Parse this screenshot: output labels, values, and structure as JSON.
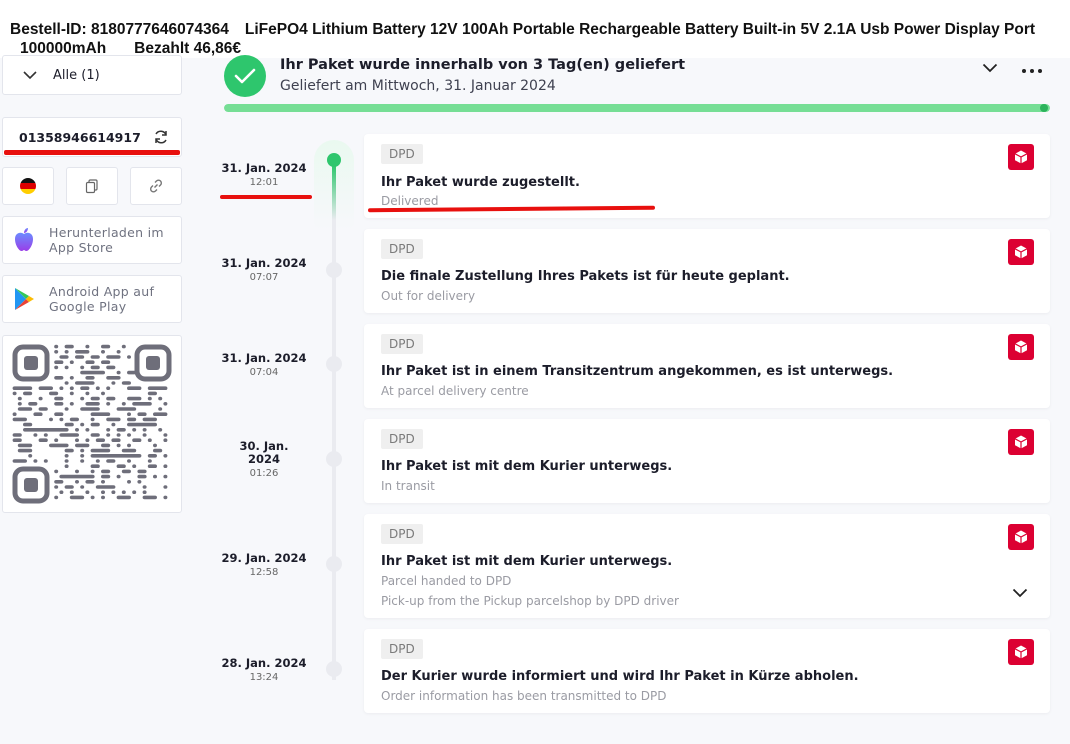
{
  "order": {
    "id_text": "Bestell-ID: 8180777646074364",
    "product_line1": "LiFePO4 Lithium Battery 12V 100Ah Portable Rechargeable Battery Built-in 5V 2.1A Usb Power Display Port",
    "product_line2": "100000mAh",
    "paid": "Bezahlt 46,86€"
  },
  "sidebar": {
    "filter_label": "Alle (1)",
    "tracking_number": "01358946614917",
    "icons": [
      "flag-de-icon",
      "copy-icon",
      "link-icon"
    ],
    "app_store": {
      "line1": "Herunterladen im",
      "line2": "App Store"
    },
    "google_play": {
      "line1": "Android App auf",
      "line2": "Google Play"
    }
  },
  "summary": {
    "title": "Ihr Paket wurde innerhalb von 3 Tag(en) geliefert",
    "subtitle": "Geliefert am Mittwoch, 31. Januar 2024",
    "progress": 1.0
  },
  "colors": {
    "accent_green": "#2ec66d",
    "dpd_red": "#dc0032",
    "annotation_red": "#e8100e"
  },
  "events": [
    {
      "date": "31. Jan. 2024",
      "time": "12:01",
      "carrier": "DPD",
      "title": "Ihr Paket wurde zugestellt.",
      "subs": [
        "Delivered"
      ]
    },
    {
      "date": "31. Jan. 2024",
      "time": "07:07",
      "carrier": "DPD",
      "title": "Die finale Zustellung Ihres Pakets ist für heute geplant.",
      "subs": [
        "Out for delivery"
      ]
    },
    {
      "date": "31. Jan. 2024",
      "time": "07:04",
      "carrier": "DPD",
      "title": "Ihr Paket ist in einem Transitzentrum angekommen, es ist unterwegs.",
      "subs": [
        "At parcel delivery centre"
      ]
    },
    {
      "date_l1": "30. Jan.",
      "date_l2": "2024",
      "time": "01:26",
      "carrier": "DPD",
      "title": "Ihr Paket ist mit dem Kurier unterwegs.",
      "subs": [
        "In transit"
      ]
    },
    {
      "date": "29. Jan. 2024",
      "time": "12:58",
      "carrier": "DPD",
      "title": "Ihr Paket ist mit dem Kurier unterwegs.",
      "subs": [
        "Parcel handed to DPD",
        "Pick-up from the Pickup parcelshop by DPD driver"
      ]
    },
    {
      "date": "28. Jan. 2024",
      "time": "13:24",
      "carrier": "DPD",
      "title": "Der Kurier wurde informiert und wird Ihr Paket in Kürze abholen.",
      "subs": [
        "Order information has been transmitted to DPD"
      ]
    }
  ]
}
